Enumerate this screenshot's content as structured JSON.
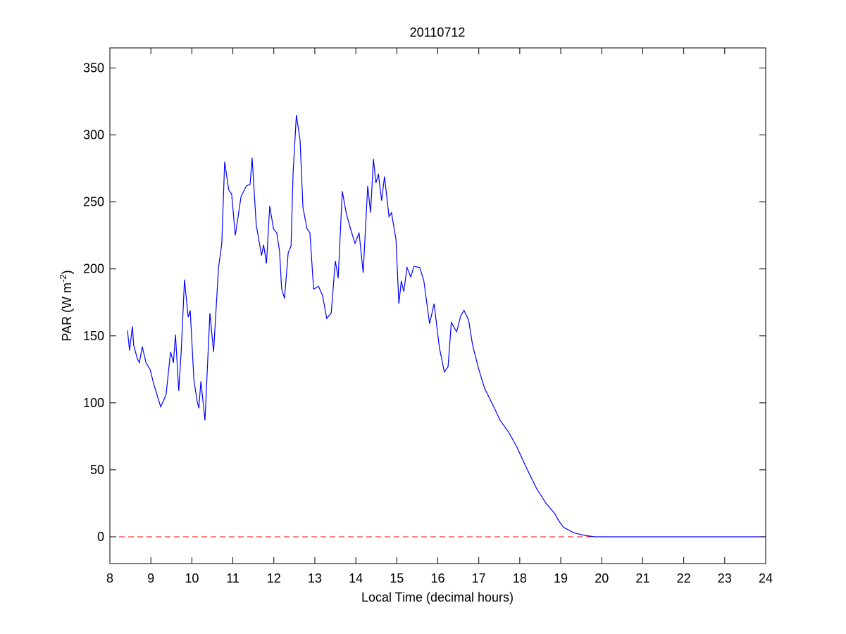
{
  "chart_data": {
    "type": "line",
    "title": "20110712",
    "xlabel": "Local Time (decimal hours)",
    "ylabel": "PAR (W m",
    "ylabel_sup": "-2",
    "ylabel_end": ")",
    "xlim": [
      8,
      24
    ],
    "ylim": [
      -20,
      365
    ],
    "xticks": [
      8,
      9,
      10,
      11,
      12,
      13,
      14,
      15,
      16,
      17,
      18,
      19,
      20,
      21,
      22,
      23,
      24
    ],
    "yticks": [
      0,
      50,
      100,
      150,
      200,
      250,
      300,
      350
    ],
    "grid": false,
    "reference_line": {
      "value": 0,
      "color": "#ff0000",
      "dashed": true
    },
    "series": [
      {
        "color": "#0000ff",
        "x": [
          8.43,
          8.48,
          8.55,
          8.58,
          8.67,
          8.72,
          8.79,
          8.88,
          8.98,
          9.07,
          9.24,
          9.37,
          9.48,
          9.55,
          9.6,
          9.68,
          9.74,
          9.82,
          9.91,
          9.96,
          10.05,
          10.13,
          10.17,
          10.22,
          10.32,
          10.44,
          10.53,
          10.65,
          10.73,
          10.8,
          10.9,
          10.97,
          11.06,
          11.2,
          11.33,
          11.42,
          11.47,
          11.57,
          11.7,
          11.75,
          11.82,
          11.9,
          11.99,
          12.07,
          12.14,
          12.19,
          12.26,
          12.35,
          12.42,
          12.47,
          12.55,
          12.64,
          12.71,
          12.81,
          12.88,
          12.97,
          13.09,
          13.19,
          13.29,
          13.4,
          13.5,
          13.57,
          13.67,
          13.77,
          13.88,
          13.98,
          14.08,
          14.18,
          14.29,
          14.36,
          14.43,
          14.49,
          14.55,
          14.63,
          14.7,
          14.81,
          14.87,
          14.98,
          15.05,
          15.11,
          15.17,
          15.25,
          15.34,
          15.42,
          15.56,
          15.66,
          15.8,
          15.91,
          16.04,
          16.16,
          16.25,
          16.33,
          16.46,
          16.56,
          16.64,
          16.75,
          16.85,
          17.0,
          17.14,
          17.35,
          17.52,
          17.73,
          17.93,
          18.17,
          18.41,
          18.64,
          18.86,
          18.95,
          19.07,
          19.32,
          19.58,
          19.84,
          24
        ],
        "values": [
          154,
          139,
          157,
          143,
          133,
          130,
          142,
          130,
          125,
          114,
          97,
          106,
          138,
          130,
          151,
          109,
          138,
          192,
          164,
          169,
          117,
          101,
          96,
          116,
          87,
          167,
          138,
          201,
          219,
          280,
          259,
          256,
          225,
          254,
          262,
          263,
          283,
          233,
          210,
          218,
          204,
          247,
          230,
          227,
          213,
          185,
          178,
          212,
          217,
          272,
          315,
          296,
          246,
          230,
          227,
          185,
          187,
          180,
          163,
          167,
          206,
          193,
          258,
          241,
          229,
          219,
          227,
          197,
          262,
          242,
          282,
          264,
          271,
          251,
          269,
          239,
          242,
          222,
          174,
          191,
          183,
          201,
          194,
          202,
          201,
          191,
          159,
          174,
          141,
          123,
          127,
          160,
          153,
          165,
          169,
          162,
          143,
          125,
          111,
          98,
          87,
          78,
          67,
          51,
          36,
          25,
          17,
          12,
          7,
          3,
          1,
          0,
          0
        ]
      }
    ]
  }
}
